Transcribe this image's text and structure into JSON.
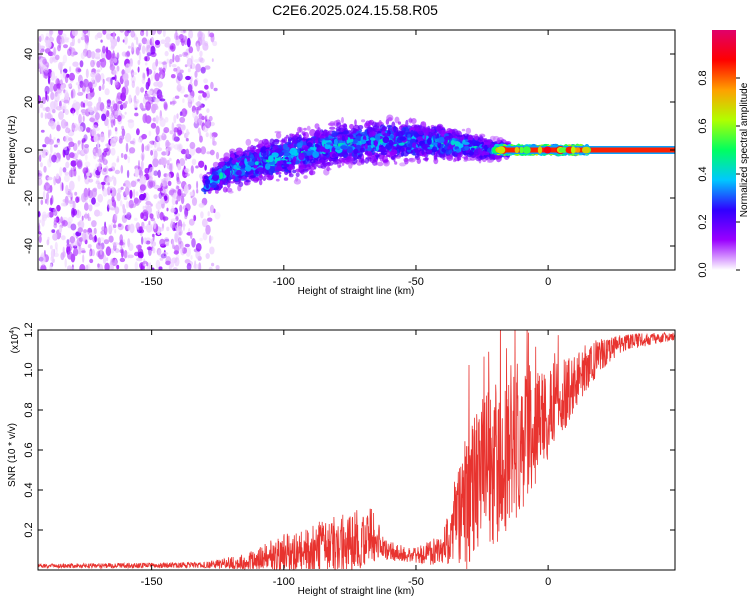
{
  "title": "C2E6.2025.024.15.58.R05",
  "colorbar": {
    "label": "Normalized spectral amplitude",
    "ticks": [
      "0.0",
      "0.2",
      "0.4",
      "0.6",
      "0.8"
    ],
    "colors": [
      "#ffffff",
      "#9a00ff",
      "#3000ff",
      "#00c8ff",
      "#00ff60",
      "#b0ff00",
      "#ffa000",
      "#ff0000",
      "#e0006a"
    ]
  },
  "chart_data": [
    {
      "type": "heatmap",
      "name": "spectrogram",
      "xlabel": "Height of straight line (km)",
      "ylabel": "Frequency (Hz)",
      "xlim": [
        -193,
        48
      ],
      "ylim": [
        -50,
        50
      ],
      "xticks": [
        {
          "value": -150,
          "label": "-150"
        },
        {
          "value": -100,
          "label": "-100"
        },
        {
          "value": -50,
          "label": "-50"
        },
        {
          "value": 0,
          "label": "0"
        }
      ],
      "yticks": [
        {
          "value": 40,
          "label": "40"
        },
        {
          "value": 20,
          "label": "20"
        },
        {
          "value": 0,
          "label": "0"
        },
        {
          "value": -20,
          "label": "-20"
        },
        {
          "value": -40,
          "label": "-40"
        }
      ],
      "noise_region_km": [
        -193,
        -125
      ],
      "signal_band": [
        {
          "x": -130,
          "center_hz": -15,
          "halfwidth_hz": 5
        },
        {
          "x": -120,
          "center_hz": -8,
          "halfwidth_hz": 8
        },
        {
          "x": -100,
          "center_hz": -3,
          "halfwidth_hz": 10
        },
        {
          "x": -80,
          "center_hz": 2,
          "halfwidth_hz": 9
        },
        {
          "x": -60,
          "center_hz": 4,
          "halfwidth_hz": 9
        },
        {
          "x": -40,
          "center_hz": 3,
          "halfwidth_hz": 7
        },
        {
          "x": -20,
          "center_hz": 0,
          "halfwidth_hz": 4
        },
        {
          "x": 0,
          "center_hz": 0,
          "halfwidth_hz": 2
        },
        {
          "x": 48,
          "center_hz": 0,
          "halfwidth_hz": 1.5
        }
      ],
      "carrier_line": {
        "x_start": -20,
        "x_end": 48,
        "freq_hz": 0,
        "amplitude": 0.85
      }
    },
    {
      "type": "line",
      "name": "snr",
      "xlabel": "Height of straight line (km)",
      "ylabel": "SNR (10 * v/v)",
      "yscale_label": "(x10",
      "yscale_exp": "4",
      "xlim": [
        -193,
        48
      ],
      "ylim": [
        0,
        1.2
      ],
      "xticks": [
        {
          "value": -150,
          "label": "-150"
        },
        {
          "value": -100,
          "label": "-100"
        },
        {
          "value": -50,
          "label": "-50"
        },
        {
          "value": 0,
          "label": "0"
        }
      ],
      "yticks": [
        {
          "value": 0.2,
          "label": "0.2"
        },
        {
          "value": 0.4,
          "label": "0.4"
        },
        {
          "value": 0.6,
          "label": "0.6"
        },
        {
          "value": 0.8,
          "label": "0.8"
        },
        {
          "value": 1.0,
          "label": "1.0"
        },
        {
          "value": 1.2,
          "label": "1.2"
        }
      ],
      "series": [
        {
          "name": "SNR",
          "color": "#e8332f",
          "envelope": [
            {
              "x": -193,
              "base": 0.02,
              "spread": 0.01
            },
            {
              "x": -130,
              "base": 0.025,
              "spread": 0.015
            },
            {
              "x": -115,
              "base": 0.04,
              "spread": 0.04
            },
            {
              "x": -100,
              "base": 0.08,
              "spread": 0.1
            },
            {
              "x": -80,
              "base": 0.13,
              "spread": 0.15
            },
            {
              "x": -66,
              "base": 0.17,
              "spread": 0.15
            },
            {
              "x": -62,
              "base": 0.1,
              "spread": 0.05
            },
            {
              "x": -50,
              "base": 0.07,
              "spread": 0.04
            },
            {
              "x": -40,
              "base": 0.1,
              "spread": 0.08
            },
            {
              "x": -32,
              "base": 0.3,
              "spread": 0.35
            },
            {
              "x": -22,
              "base": 0.5,
              "spread": 0.45
            },
            {
              "x": -12,
              "base": 0.6,
              "spread": 0.35
            },
            {
              "x": 0,
              "base": 0.78,
              "spread": 0.25
            },
            {
              "x": 10,
              "base": 0.95,
              "spread": 0.15
            },
            {
              "x": 20,
              "base": 1.08,
              "spread": 0.08
            },
            {
              "x": 30,
              "base": 1.14,
              "spread": 0.04
            },
            {
              "x": 48,
              "base": 1.17,
              "spread": 0.02
            }
          ]
        }
      ]
    }
  ]
}
